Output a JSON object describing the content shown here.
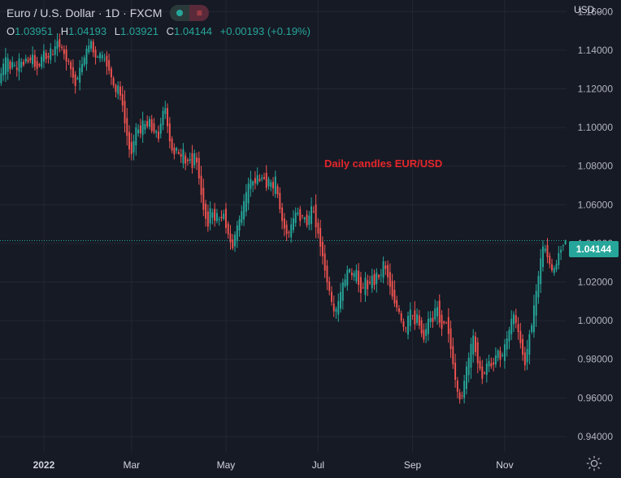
{
  "header": {
    "title": "Euro / U.S. Dollar · 1D · FXCM",
    "currency": "USD"
  },
  "ohlc": {
    "o_label": "O",
    "o": "1.03951",
    "h_label": "H",
    "h": "1.04193",
    "l_label": "L",
    "l": "1.03921",
    "c_label": "C",
    "c": "1.04144",
    "change": "+0.00193 (+0.19%)"
  },
  "last_price_label": "1.04144",
  "colors": {
    "up": "#26a69a",
    "down": "#ef5350",
    "background": "#161a25",
    "grid": "#232733",
    "annotation": "#e5262b"
  },
  "icons": {
    "settings": "gear-icon",
    "currency_menu": "chevron-down-icon"
  },
  "chart_data": {
    "type": "candlestick",
    "instrument": "EUR/USD",
    "interval": "1D",
    "ylim": [
      0.932,
      1.166
    ],
    "y_ticks": [
      "0.94000",
      "0.96000",
      "0.98000",
      "1.00000",
      "1.02000",
      "1.04000",
      "1.06000",
      "1.08000",
      "1.10000",
      "1.12000",
      "1.14000",
      "1.16000"
    ],
    "x_ticks": [
      "2022",
      "Mar",
      "May",
      "Jul",
      "Sep",
      "Nov"
    ],
    "annotation": "Daily candles EUR/USD",
    "last_price": 1.04144,
    "path": [
      [
        1.123,
        1.128
      ],
      [
        1.13,
        1.134
      ],
      [
        1.128,
        1.137
      ],
      [
        1.134,
        1.13
      ],
      [
        1.131,
        1.135
      ],
      [
        1.133,
        1.128
      ],
      [
        1.13,
        1.136
      ],
      [
        1.134,
        1.131
      ],
      [
        1.132,
        1.137
      ],
      [
        1.136,
        1.133
      ],
      [
        1.134,
        1.138
      ],
      [
        1.136,
        1.132
      ],
      [
        1.133,
        1.13
      ],
      [
        1.131,
        1.136
      ],
      [
        1.135,
        1.14
      ],
      [
        1.138,
        1.134
      ],
      [
        1.135,
        1.141
      ],
      [
        1.14,
        1.136
      ],
      [
        1.137,
        1.147
      ],
      [
        1.145,
        1.142
      ],
      [
        1.143,
        1.139
      ],
      [
        1.14,
        1.135
      ],
      [
        1.136,
        1.133
      ],
      [
        1.133,
        1.128
      ],
      [
        1.128,
        1.121
      ],
      [
        1.122,
        1.128
      ],
      [
        1.127,
        1.132
      ],
      [
        1.131,
        1.137
      ],
      [
        1.136,
        1.141
      ],
      [
        1.14,
        1.146
      ],
      [
        1.145,
        1.138
      ],
      [
        1.139,
        1.134
      ],
      [
        1.135,
        1.139
      ],
      [
        1.138,
        1.136
      ],
      [
        1.137,
        1.133
      ],
      [
        1.134,
        1.13
      ],
      [
        1.13,
        1.124
      ],
      [
        1.124,
        1.117
      ],
      [
        1.117,
        1.122
      ],
      [
        1.121,
        1.115
      ],
      [
        1.115,
        1.103
      ],
      [
        1.103,
        1.094
      ],
      [
        1.094,
        1.084
      ],
      [
        1.085,
        1.094
      ],
      [
        1.093,
        1.102
      ],
      [
        1.101,
        1.096
      ],
      [
        1.096,
        1.104
      ],
      [
        1.103,
        1.099
      ],
      [
        1.099,
        1.106
      ],
      [
        1.105,
        1.097
      ],
      [
        1.097,
        1.1
      ],
      [
        1.099,
        1.093
      ],
      [
        1.094,
        1.106
      ],
      [
        1.106,
        1.113
      ],
      [
        1.112,
        1.099
      ],
      [
        1.099,
        1.089
      ],
      [
        1.089,
        1.086
      ],
      [
        1.086,
        1.091
      ],
      [
        1.09,
        1.082
      ],
      [
        1.083,
        1.088
      ],
      [
        1.087,
        1.079
      ],
      [
        1.08,
        1.086
      ],
      [
        1.085,
        1.08
      ],
      [
        1.081,
        1.088
      ],
      [
        1.087,
        1.075
      ],
      [
        1.075,
        1.063
      ],
      [
        1.063,
        1.055
      ],
      [
        1.055,
        1.049
      ],
      [
        1.05,
        1.06
      ],
      [
        1.059,
        1.051
      ],
      [
        1.051,
        1.056
      ],
      [
        1.055,
        1.05
      ],
      [
        1.05,
        1.058
      ],
      [
        1.057,
        1.048
      ],
      [
        1.048,
        1.042
      ],
      [
        1.042,
        1.037
      ],
      [
        1.038,
        1.046
      ],
      [
        1.045,
        1.051
      ],
      [
        1.05,
        1.057
      ],
      [
        1.056,
        1.062
      ],
      [
        1.061,
        1.069
      ],
      [
        1.068,
        1.074
      ],
      [
        1.073,
        1.07
      ],
      [
        1.07,
        1.076
      ],
      [
        1.075,
        1.071
      ],
      [
        1.071,
        1.077
      ],
      [
        1.076,
        1.069
      ],
      [
        1.069,
        1.074
      ],
      [
        1.073,
        1.067
      ],
      [
        1.067,
        1.074
      ],
      [
        1.073,
        1.06
      ],
      [
        1.06,
        1.052
      ],
      [
        1.052,
        1.047
      ],
      [
        1.047,
        1.044
      ],
      [
        1.044,
        1.049
      ],
      [
        1.048,
        1.054
      ],
      [
        1.053,
        1.058
      ],
      [
        1.057,
        1.052
      ],
      [
        1.052,
        1.056
      ],
      [
        1.055,
        1.049
      ],
      [
        1.049,
        1.055
      ],
      [
        1.054,
        1.06
      ],
      [
        1.059,
        1.05
      ],
      [
        1.05,
        1.043
      ],
      [
        1.043,
        1.036
      ],
      [
        1.036,
        1.025
      ],
      [
        1.025,
        1.018
      ],
      [
        1.018,
        1.01
      ],
      [
        1.01,
        1.003
      ],
      [
        1.003,
        1.007
      ],
      [
        1.006,
        1.014
      ],
      [
        1.013,
        1.02
      ],
      [
        1.019,
        1.024
      ],
      [
        1.023,
        1.028
      ],
      [
        1.027,
        1.021
      ],
      [
        1.021,
        1.027
      ],
      [
        1.026,
        1.018
      ],
      [
        1.018,
        1.014
      ],
      [
        1.014,
        1.022
      ],
      [
        1.021,
        1.016
      ],
      [
        1.016,
        1.024
      ],
      [
        1.023,
        1.019
      ],
      [
        1.019,
        1.026
      ],
      [
        1.025,
        1.021
      ],
      [
        1.021,
        1.032
      ],
      [
        1.031,
        1.025
      ],
      [
        1.025,
        1.019
      ],
      [
        1.019,
        1.012
      ],
      [
        1.012,
        1.008
      ],
      [
        1.008,
        1.004
      ],
      [
        1.004,
        0.998
      ],
      [
        0.998,
        0.994
      ],
      [
        0.994,
        1.002
      ],
      [
        1.001,
        1.006
      ],
      [
        1.005,
        0.998
      ],
      [
        0.998,
        1.004
      ],
      [
        1.003,
        0.995
      ],
      [
        0.995,
        0.99
      ],
      [
        0.99,
        0.998
      ],
      [
        0.997,
        1.003
      ],
      [
        1.002,
        0.999
      ],
      [
        0.999,
        1.01
      ],
      [
        1.01,
        1.001
      ],
      [
        1.001,
        0.996
      ],
      [
        0.996,
        1.002
      ],
      [
        1.001,
        0.995
      ],
      [
        0.995,
        0.983
      ],
      [
        0.983,
        0.971
      ],
      [
        0.971,
        0.962
      ],
      [
        0.962,
        0.957
      ],
      [
        0.957,
        0.968
      ],
      [
        0.967,
        0.976
      ],
      [
        0.975,
        0.983
      ],
      [
        0.982,
        0.993
      ],
      [
        0.992,
        0.983
      ],
      [
        0.983,
        0.976
      ],
      [
        0.976,
        0.97
      ],
      [
        0.97,
        0.975
      ],
      [
        0.974,
        0.981
      ],
      [
        0.98,
        0.975
      ],
      [
        0.975,
        0.98
      ],
      [
        0.979,
        0.986
      ],
      [
        0.985,
        0.979
      ],
      [
        0.979,
        0.985
      ],
      [
        0.984,
        0.991
      ],
      [
        0.99,
        0.997
      ],
      [
        0.996,
        1.005
      ],
      [
        1.004,
        0.998
      ],
      [
        0.998,
        0.991
      ],
      [
        0.991,
        0.984
      ],
      [
        0.984,
        0.975
      ],
      [
        0.975,
        0.992
      ],
      [
        0.992,
        0.998
      ],
      [
        0.997,
        1.009
      ],
      [
        1.008,
        1.021
      ],
      [
        1.02,
        1.032
      ],
      [
        1.031,
        1.041
      ],
      [
        1.04,
        1.034
      ],
      [
        1.034,
        1.028
      ],
      [
        1.028,
        1.024
      ],
      [
        1.024,
        1.03
      ],
      [
        1.03,
        1.036
      ],
      [
        1.036,
        1.0395
      ],
      [
        1.0395,
        1.04144
      ]
    ]
  }
}
